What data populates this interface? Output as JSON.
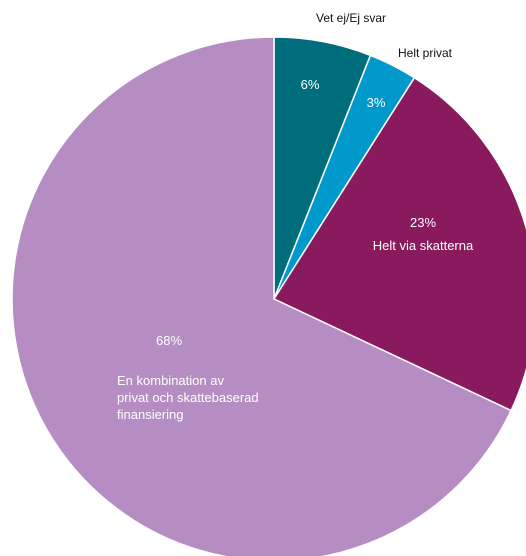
{
  "chart_data": {
    "type": "pie",
    "slices": [
      {
        "value": 6,
        "percent_label": "6%",
        "label": "Vet ej/Ej svar",
        "color": "#006d7c"
      },
      {
        "value": 3,
        "percent_label": "3%",
        "label": "Helt privat",
        "color": "#0099cc"
      },
      {
        "value": 23,
        "percent_label": "23%",
        "label": "Helt via skatterna",
        "color": "#8a1a5e"
      },
      {
        "value": 68,
        "percent_label": "68%",
        "label": "En kombination av privat och skattebaserad finansiering",
        "color": "#b58dc2"
      }
    ]
  }
}
